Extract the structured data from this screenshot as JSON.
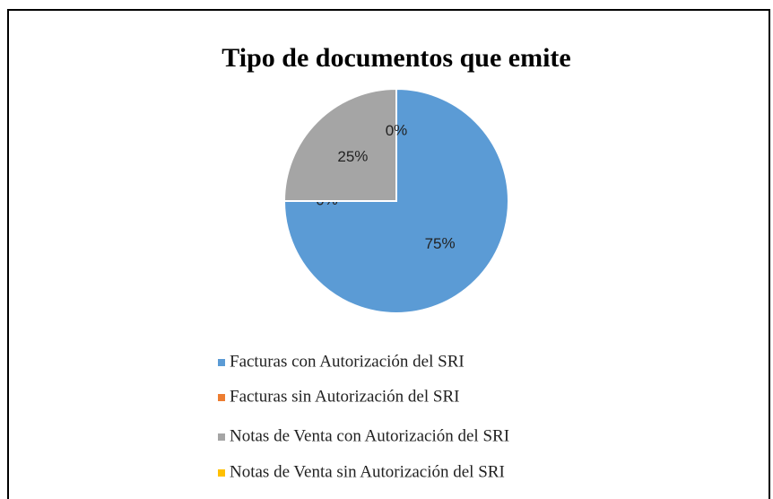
{
  "chart_data": {
    "type": "pie",
    "title": "Tipo de documentos que emite",
    "categories": [
      "Facturas con Autorización del SRI",
      "Facturas sin Autorización del SRI",
      "Notas de Venta con Autorización del SRI",
      "Notas de Venta sin Autorización del SRI"
    ],
    "values": [
      75,
      0,
      25,
      0
    ],
    "colors": [
      "#5b9bd5",
      "#ed7d31",
      "#a5a5a5",
      "#ffc000"
    ],
    "legend": "bottom"
  }
}
